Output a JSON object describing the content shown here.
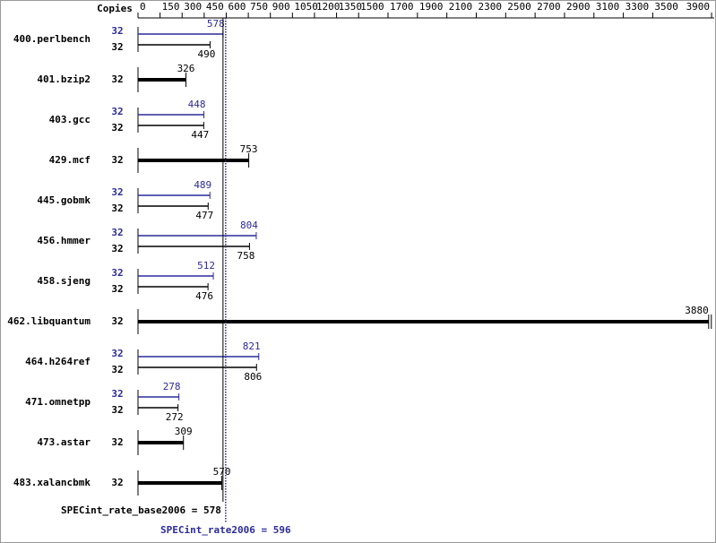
{
  "chart_data": {
    "type": "spec-bar",
    "axis_title": "Copies",
    "categories": [
      "400.perlbench",
      "401.bzip2",
      "403.gcc",
      "429.mcf",
      "445.gobmk",
      "456.hmmer",
      "458.sjeng",
      "462.libquantum",
      "464.h264ref",
      "471.omnetpp",
      "473.astar",
      "483.xalancbmk"
    ],
    "series": [
      {
        "color": "#000000",
        "copies": [
          32,
          32,
          32,
          32,
          32,
          32,
          32,
          32,
          32,
          32,
          32,
          32
        ],
        "values": [
          490,
          326,
          447,
          753,
          477,
          758,
          476,
          3880,
          806,
          272,
          309,
          570
        ]
      },
      {
        "color": "#2b2b9a",
        "copies": [
          32,
          null,
          32,
          null,
          32,
          32,
          32,
          null,
          32,
          32,
          null,
          null
        ],
        "values": [
          578,
          null,
          448,
          null,
          489,
          804,
          512,
          null,
          821,
          278,
          null,
          null
        ]
      }
    ],
    "xlim": [
      0,
      3930
    ],
    "xticks": [
      0,
      150,
      300,
      450,
      600,
      750,
      900,
      1050,
      1200,
      1350,
      1500,
      1700,
      1900,
      2100,
      2300,
      2500,
      2700,
      2900,
      3100,
      3300,
      3500,
      3900
    ],
    "reference_lines": [
      {
        "label": "SPECint_rate_base2006 = 578",
        "value": 578,
        "color": "#000000",
        "style": "solid"
      },
      {
        "label": "SPECint_rate2006 = 596",
        "value": 596,
        "color": "#2b2b9a",
        "style": "dotted"
      }
    ]
  }
}
